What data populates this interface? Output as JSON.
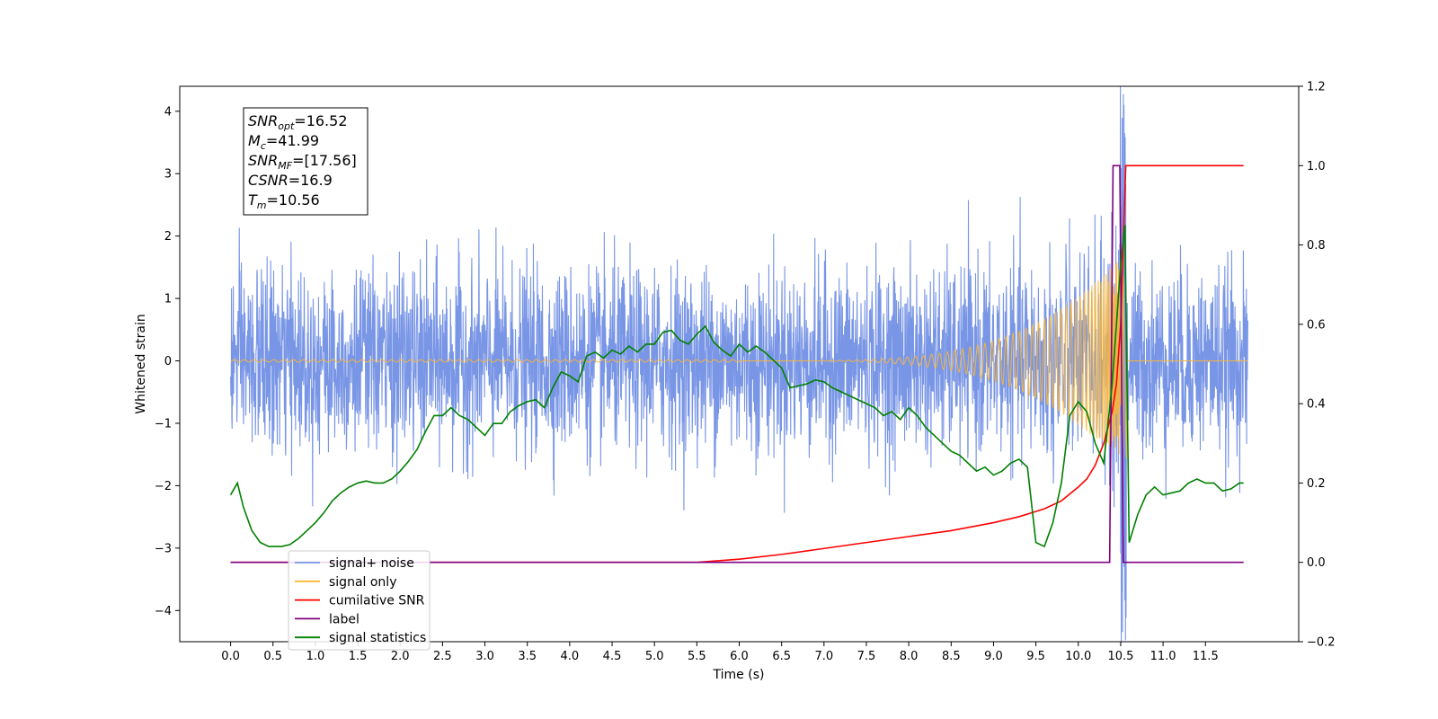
{
  "chart_data": {
    "type": "line",
    "xlabel": "Time (s)",
    "ylabel": "Whitened strain",
    "xlim": [
      -0.6,
      12.6
    ],
    "ylim": [
      -4.5,
      4.4
    ],
    "y2lim": [
      -0.2,
      1.2
    ],
    "grid": false,
    "legend_placement": "lower-left",
    "x_ticks": [
      0.0,
      0.5,
      1.0,
      1.5,
      2.0,
      2.5,
      3.0,
      3.5,
      4.0,
      4.5,
      5.0,
      5.5,
      6.0,
      6.5,
      7.0,
      7.5,
      8.0,
      8.5,
      9.0,
      9.5,
      10.0,
      10.5,
      11.0,
      11.5
    ],
    "x_tick_labels": [
      "0.0",
      "0.5",
      "1.0",
      "1.5",
      "2.0",
      "2.5",
      "3.0",
      "3.5",
      "4.0",
      "4.5",
      "5.0",
      "5.5",
      "6.0",
      "6.5",
      "7.0",
      "7.5",
      "8.0",
      "8.5",
      "9.0",
      "9.5",
      "10.0",
      "10.5",
      "11.0",
      "11.5"
    ],
    "y_ticks": [
      -4,
      -3,
      -2,
      -1,
      0,
      1,
      2,
      3,
      4
    ],
    "y_tick_labels": [
      "−4",
      "−3",
      "−2",
      "−1",
      "0",
      "1",
      "2",
      "3",
      "4"
    ],
    "y2_ticks": [
      -0.2,
      0.0,
      0.2,
      0.4,
      0.6,
      0.8,
      1.0,
      1.2
    ],
    "y2_tick_labels": [
      "−0.2",
      "0.0",
      "0.2",
      "0.4",
      "0.6",
      "0.8",
      "1.0",
      "1.2"
    ],
    "annotations": [
      {
        "sym": "SNR",
        "sub": "opt",
        "value": "=16.52"
      },
      {
        "sym": "M",
        "sub": "c",
        "value": "=41.99"
      },
      {
        "sym": "SNR",
        "sub": "MF",
        "value": "=[17.56]"
      },
      {
        "sym": "CSNR",
        "sub": "",
        "value": "=16.9"
      },
      {
        "sym": "T",
        "sub": "m",
        "value": "=10.56"
      }
    ],
    "legend": [
      {
        "label": "signal+ noise",
        "color": "#7895e6"
      },
      {
        "label": "signal only",
        "color": "#ffb732"
      },
      {
        "label": "cumilative SNR",
        "color": "#ff0000"
      },
      {
        "label": "label",
        "color": "#800080"
      },
      {
        "label": "signal statistics",
        "color": "#008000"
      }
    ],
    "noise": {
      "color": "#7895e6",
      "t_start": 0.0,
      "t_end": 12.0,
      "typical_amplitude": 1.4,
      "extreme_range": [
        -2.7,
        2.7
      ],
      "peak_time": 10.53,
      "peak_max": 4.03,
      "peak_min": -4.1
    },
    "signal_only": {
      "color": "#ffb732",
      "t_start": 0.0,
      "t_end": 12.0,
      "growth_start": 6.0,
      "merger_time": 10.53,
      "peak_amplitude": 1.7,
      "frequency_hz": [
        8,
        35
      ]
    },
    "series": [
      {
        "name": "cumilative SNR",
        "axis": "right",
        "color": "#ff0000",
        "x": [
          0.0,
          5.5,
          6.0,
          6.5,
          7.0,
          7.5,
          8.0,
          8.5,
          9.0,
          9.3,
          9.6,
          9.8,
          10.0,
          10.1,
          10.2,
          10.3,
          10.4,
          10.45,
          10.5,
          10.53,
          10.56,
          11.95
        ],
        "y": [
          0.0,
          0.0,
          0.008,
          0.02,
          0.035,
          0.05,
          0.065,
          0.08,
          0.1,
          0.115,
          0.135,
          0.155,
          0.19,
          0.21,
          0.245,
          0.3,
          0.38,
          0.45,
          0.6,
          0.8,
          1.0,
          1.0
        ]
      },
      {
        "name": "label",
        "axis": "right",
        "color": "#800080",
        "x": [
          0.0,
          10.37,
          10.41,
          10.49,
          10.53,
          11.95
        ],
        "y": [
          0.0,
          0.0,
          1.0,
          1.0,
          0.0,
          0.0
        ]
      },
      {
        "name": "signal statistics",
        "axis": "right",
        "color": "#008000",
        "x": [
          0.0,
          0.08,
          0.15,
          0.25,
          0.35,
          0.45,
          0.6,
          0.7,
          0.8,
          0.9,
          1.0,
          1.1,
          1.2,
          1.3,
          1.4,
          1.5,
          1.6,
          1.7,
          1.8,
          1.9,
          2.0,
          2.1,
          2.2,
          2.3,
          2.4,
          2.5,
          2.6,
          2.7,
          2.8,
          2.9,
          3.0,
          3.1,
          3.2,
          3.3,
          3.4,
          3.5,
          3.6,
          3.7,
          3.8,
          3.9,
          4.0,
          4.1,
          4.2,
          4.3,
          4.4,
          4.5,
          4.6,
          4.7,
          4.8,
          4.9,
          5.0,
          5.1,
          5.2,
          5.3,
          5.4,
          5.5,
          5.6,
          5.7,
          5.8,
          5.9,
          6.0,
          6.1,
          6.2,
          6.3,
          6.4,
          6.5,
          6.6,
          6.7,
          6.8,
          6.9,
          7.0,
          7.1,
          7.2,
          7.3,
          7.4,
          7.5,
          7.6,
          7.7,
          7.8,
          7.9,
          8.0,
          8.1,
          8.2,
          8.3,
          8.4,
          8.5,
          8.6,
          8.7,
          8.8,
          8.9,
          9.0,
          9.1,
          9.2,
          9.3,
          9.4,
          9.5,
          9.6,
          9.7,
          9.8,
          9.9,
          10.0,
          10.1,
          10.2,
          10.3,
          10.4,
          10.5,
          10.55,
          10.6,
          10.7,
          10.8,
          10.9,
          11.0,
          11.1,
          11.2,
          11.3,
          11.4,
          11.5,
          11.6,
          11.7,
          11.8,
          11.9,
          11.95
        ],
        "y": [
          0.17,
          0.2,
          0.14,
          0.08,
          0.05,
          0.04,
          0.04,
          0.045,
          0.06,
          0.08,
          0.1,
          0.125,
          0.155,
          0.175,
          0.19,
          0.2,
          0.205,
          0.2,
          0.2,
          0.21,
          0.23,
          0.255,
          0.285,
          0.33,
          0.37,
          0.37,
          0.39,
          0.37,
          0.36,
          0.34,
          0.32,
          0.35,
          0.35,
          0.38,
          0.395,
          0.405,
          0.41,
          0.39,
          0.44,
          0.48,
          0.47,
          0.455,
          0.52,
          0.53,
          0.515,
          0.535,
          0.525,
          0.545,
          0.53,
          0.55,
          0.55,
          0.58,
          0.585,
          0.56,
          0.55,
          0.575,
          0.595,
          0.555,
          0.535,
          0.52,
          0.55,
          0.53,
          0.545,
          0.53,
          0.51,
          0.49,
          0.44,
          0.445,
          0.45,
          0.46,
          0.455,
          0.44,
          0.43,
          0.42,
          0.41,
          0.4,
          0.39,
          0.37,
          0.38,
          0.36,
          0.39,
          0.37,
          0.34,
          0.32,
          0.3,
          0.28,
          0.27,
          0.25,
          0.23,
          0.24,
          0.22,
          0.23,
          0.25,
          0.26,
          0.24,
          0.05,
          0.04,
          0.1,
          0.2,
          0.37,
          0.405,
          0.38,
          0.3,
          0.25,
          0.45,
          0.75,
          0.85,
          0.05,
          0.12,
          0.17,
          0.19,
          0.17,
          0.175,
          0.18,
          0.2,
          0.21,
          0.2,
          0.2,
          0.18,
          0.185,
          0.2,
          0.2
        ]
      }
    ]
  }
}
